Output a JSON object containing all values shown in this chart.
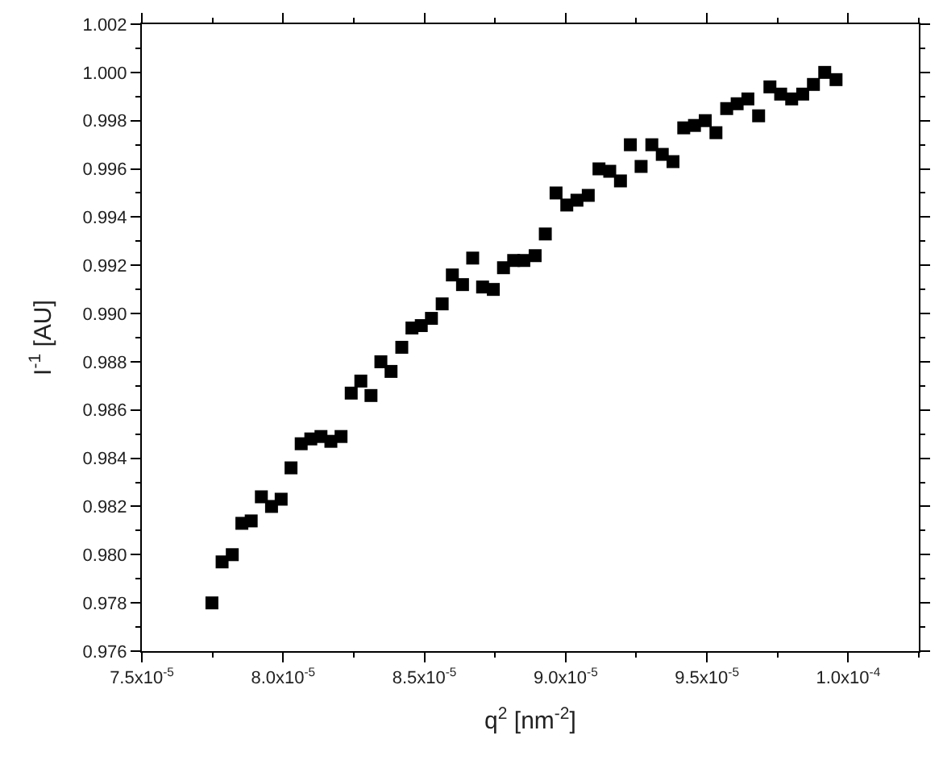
{
  "chart_data": {
    "type": "scatter",
    "xlabel": "q$^{2}$ [nm$^{-2}$]",
    "ylabel": "I$^{-1}$ [AU]",
    "marker": "square",
    "xlim": [
      7.5e-05,
      0.0001025
    ],
    "ylim": [
      0.976,
      1.002
    ],
    "xticks": [
      {
        "value": 7.5e-05,
        "label": "7.5x10$^{-5}$"
      },
      {
        "value": 7.75e-05,
        "label": null
      },
      {
        "value": 8e-05,
        "label": "8.0x10$^{-5}$"
      },
      {
        "value": 8.25e-05,
        "label": null
      },
      {
        "value": 8.5e-05,
        "label": "8.5x10$^{-5}$"
      },
      {
        "value": 8.75e-05,
        "label": null
      },
      {
        "value": 9e-05,
        "label": "9.0x10$^{-5}$"
      },
      {
        "value": 9.25e-05,
        "label": null
      },
      {
        "value": 9.5e-05,
        "label": "9.5x10$^{-5}$"
      },
      {
        "value": 9.75e-05,
        "label": null
      },
      {
        "value": 0.0001,
        "label": "1.0x10$^{-4}$"
      },
      {
        "value": 0.0001025,
        "label": null
      }
    ],
    "yticks": [
      {
        "value": 0.976,
        "label": "0.976"
      },
      {
        "value": 0.977,
        "label": null
      },
      {
        "value": 0.978,
        "label": "0.978"
      },
      {
        "value": 0.979,
        "label": null
      },
      {
        "value": 0.98,
        "label": "0.980"
      },
      {
        "value": 0.981,
        "label": null
      },
      {
        "value": 0.982,
        "label": "0.982"
      },
      {
        "value": 0.983,
        "label": null
      },
      {
        "value": 0.984,
        "label": "0.984"
      },
      {
        "value": 0.985,
        "label": null
      },
      {
        "value": 0.986,
        "label": "0.986"
      },
      {
        "value": 0.987,
        "label": null
      },
      {
        "value": 0.988,
        "label": "0.988"
      },
      {
        "value": 0.989,
        "label": null
      },
      {
        "value": 0.99,
        "label": "0.990"
      },
      {
        "value": 0.991,
        "label": null
      },
      {
        "value": 0.992,
        "label": "0.992"
      },
      {
        "value": 0.993,
        "label": null
      },
      {
        "value": 0.994,
        "label": "0.994"
      },
      {
        "value": 0.995,
        "label": null
      },
      {
        "value": 0.996,
        "label": "0.996"
      },
      {
        "value": 0.997,
        "label": null
      },
      {
        "value": 0.998,
        "label": "0.998"
      },
      {
        "value": 0.999,
        "label": null
      },
      {
        "value": 1.0,
        "label": "1.000"
      },
      {
        "value": 1.001,
        "label": null
      },
      {
        "value": 1.002,
        "label": "1.002"
      }
    ],
    "x": [
      7.748e-05,
      7.784e-05,
      7.82e-05,
      7.854e-05,
      7.887e-05,
      7.923e-05,
      7.959e-05,
      7.993e-05,
      8.028e-05,
      8.064e-05,
      8.098e-05,
      8.134e-05,
      8.169e-05,
      8.205e-05,
      8.241e-05,
      8.275e-05,
      8.311e-05,
      8.346e-05,
      8.382e-05,
      8.42e-05,
      8.456e-05,
      8.489e-05,
      8.525e-05,
      8.563e-05,
      8.599e-05,
      8.635e-05,
      8.671e-05,
      8.706e-05,
      8.744e-05,
      8.78e-05,
      8.816e-05,
      8.852e-05,
      8.892e-05,
      8.928e-05,
      8.966e-05,
      9.004e-05,
      9.04e-05,
      9.08e-05,
      9.118e-05,
      9.156e-05,
      9.194e-05,
      9.229e-05,
      9.267e-05,
      9.305e-05,
      9.342e-05,
      9.38e-05,
      9.418e-05,
      9.456e-05,
      9.494e-05,
      9.532e-05,
      9.57e-05,
      9.607e-05,
      9.645e-05,
      9.683e-05,
      9.723e-05,
      9.761e-05,
      9.8e-05,
      9.839e-05,
      9.877e-05,
      9.917e-05,
      9.957e-05
    ],
    "series": [
      {
        "color": "#000000",
        "values": [
          0.978,
          0.9797,
          0.98,
          0.9813,
          0.9814,
          0.9824,
          0.982,
          0.9823,
          0.9836,
          0.9846,
          0.9848,
          0.9849,
          0.9847,
          0.9849,
          0.9867,
          0.9872,
          0.9866,
          0.988,
          0.9876,
          0.9886,
          0.9894,
          0.9895,
          0.9898,
          0.9904,
          0.9916,
          0.9912,
          0.9923,
          0.9911,
          0.991,
          0.9919,
          0.9922,
          0.9922,
          0.9924,
          0.9933,
          0.995,
          0.9945,
          0.9947,
          0.9949,
          0.996,
          0.9959,
          0.9955,
          0.997,
          0.9961,
          0.997,
          0.9966,
          0.9963,
          0.9977,
          0.9978,
          0.998,
          0.9975,
          0.9985,
          0.9987,
          0.9989,
          0.9982,
          0.9994,
          0.9991,
          0.9989,
          0.9991,
          0.9995,
          1.0,
          0.9997
        ]
      }
    ]
  }
}
